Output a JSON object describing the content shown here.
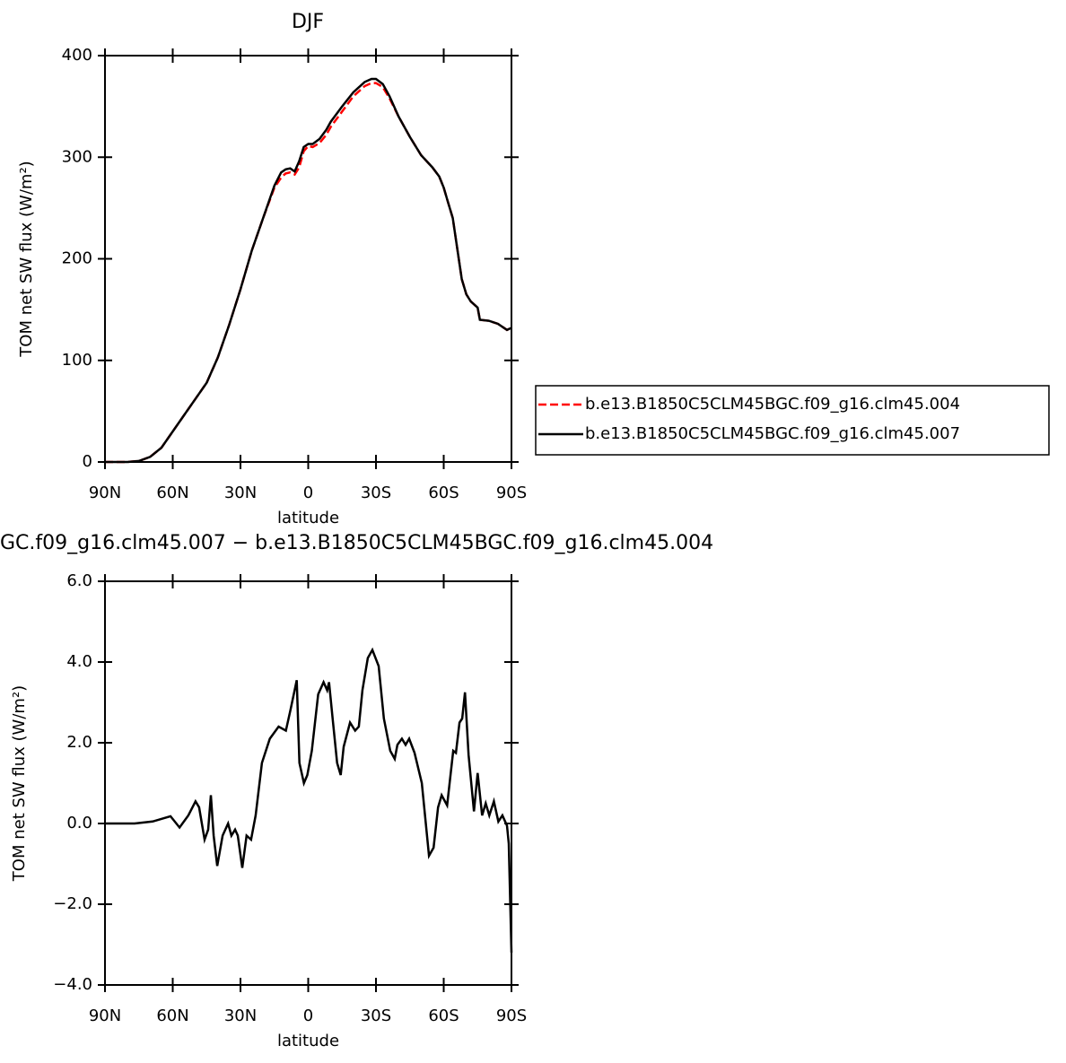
{
  "chart_data": [
    {
      "type": "line",
      "title": "DJF",
      "xlabel": "latitude",
      "ylabel": "TOM net SW flux (W/m²)",
      "xlim": [
        90,
        -90
      ],
      "xticks": [
        {
          "value": 90,
          "label": "90N"
        },
        {
          "value": 60,
          "label": "60N"
        },
        {
          "value": 30,
          "label": "30N"
        },
        0,
        {
          "value": -30,
          "label": "30S"
        },
        {
          "value": -60,
          "label": "60S"
        },
        {
          "value": -90,
          "label": "90S"
        }
      ],
      "ylim": [
        0,
        400
      ],
      "yticks": [
        0,
        100,
        200,
        300,
        400
      ],
      "legend": "right",
      "x": [
        90,
        85,
        80,
        75,
        70,
        65,
        60,
        55,
        50,
        45,
        40,
        35,
        30,
        25,
        20,
        15,
        12,
        10,
        8,
        6,
        4,
        2,
        0,
        -2,
        -5,
        -8,
        -10,
        -15,
        -20,
        -25,
        -28,
        -30,
        -33,
        -36,
        -40,
        -45,
        -50,
        -55,
        -58,
        -60,
        -62,
        -64,
        -66,
        -68,
        -70,
        -72,
        -74,
        -75,
        -76,
        -80,
        -84,
        -88,
        -90
      ],
      "series": [
        {
          "name": "b.e13.B1850C5CLM45BGC.f09_g16.clm45.004",
          "color": "#ff0000",
          "dash": true,
          "values": [
            0,
            0,
            0,
            1,
            5,
            14,
            30,
            46,
            62,
            78,
            103,
            135,
            170,
            208,
            240,
            270,
            280,
            284,
            285,
            283,
            290,
            306,
            311,
            310,
            314,
            322,
            330,
            345,
            360,
            370,
            373,
            373,
            369,
            358,
            340,
            320,
            302,
            290,
            281,
            270,
            255,
            240,
            210,
            180,
            165,
            158,
            154,
            152,
            140,
            139,
            136,
            130,
            132
          ]
        },
        {
          "name": "b.e13.B1850C5CLM45BGC.f09_g16.clm45.007",
          "color": "#000000",
          "dash": false,
          "values": [
            0,
            0,
            0,
            1,
            5,
            14,
            30,
            46,
            62,
            78,
            103,
            135,
            170,
            208,
            240,
            272,
            285,
            288,
            289,
            286,
            296,
            310,
            313,
            313,
            318,
            327,
            335,
            350,
            364,
            374,
            377,
            377,
            372,
            360,
            340,
            320,
            302,
            290,
            281,
            270,
            255,
            240,
            210,
            180,
            165,
            158,
            154,
            152,
            140,
            139,
            136,
            130,
            132
          ]
        }
      ]
    },
    {
      "type": "line",
      "title": "GC.f09_g16.clm45.007 − b.e13.B1850C5CLM45BGC.f09_g16.clm45.004",
      "xlabel": "latitude",
      "ylabel": "TOM net SW flux (W/m²)",
      "xlim": [
        90,
        -90
      ],
      "xticks": [
        {
          "value": 90,
          "label": "90N"
        },
        {
          "value": 60,
          "label": "60N"
        },
        {
          "value": 30,
          "label": "30N"
        },
        0,
        {
          "value": -30,
          "label": "30S"
        },
        {
          "value": -60,
          "label": "60S"
        },
        {
          "value": -90,
          "label": "90S"
        }
      ],
      "ylim": [
        -4,
        6
      ],
      "yticks": [
        {
          "value": -4,
          "label": "−4.0"
        },
        {
          "value": -2,
          "label": "−2.0"
        },
        {
          "value": 0,
          "label": "0.0"
        },
        {
          "value": 2,
          "label": "2.0"
        },
        {
          "value": 4,
          "label": "4.0"
        },
        {
          "value": 6,
          "label": "6.0"
        }
      ],
      "x": [
        90,
        76.9,
        68.9,
        61.0,
        57.0,
        53.1,
        49.9,
        48.3,
        45.9,
        44.3,
        43.1,
        41.9,
        40.3,
        37.9,
        35.5,
        34.0,
        32.4,
        31.2,
        29.2,
        27.3,
        25.3,
        23.3,
        20.5,
        17.0,
        13.1,
        9.9,
        7.9,
        5.1,
        3.9,
        1.9,
        0.4,
        -1.6,
        -4.4,
        -6.8,
        -8.4,
        -9.2,
        -10.8,
        -12.8,
        -14.4,
        -15.7,
        -18.5,
        -20.8,
        -22.4,
        -24.0,
        -26.4,
        -28.4,
        -31.2,
        -33.5,
        -36.3,
        -38.3,
        -39.5,
        -41.5,
        -43.1,
        -44.7,
        -47.1,
        -50.3,
        -53.5,
        -55.5,
        -57.5,
        -59.1,
        -61.5,
        -64.2,
        -65.4,
        -67.0,
        -68.2,
        -69.4,
        -71.0,
        -73.4,
        -75.0,
        -77.0,
        -78.6,
        -80.2,
        -82.2,
        -84.2,
        -86.0,
        -88.0,
        -88.8,
        -90
      ],
      "series": [
        {
          "color": "#000000",
          "dash": false,
          "values": [
            0,
            0,
            0.05,
            0.18,
            -0.1,
            0.2,
            0.55,
            0.4,
            -0.4,
            -0.15,
            0.7,
            -0.3,
            -1.05,
            -0.3,
            0,
            -0.3,
            -0.15,
            -0.3,
            -1.1,
            -0.3,
            -0.4,
            0.2,
            1.5,
            2.1,
            2.4,
            2.3,
            2.8,
            3.55,
            1.5,
            1.0,
            1.2,
            1.8,
            3.2,
            3.5,
            3.3,
            3.5,
            2.6,
            1.5,
            1.2,
            1.9,
            2.5,
            2.3,
            2.4,
            3.3,
            4.1,
            4.3,
            3.9,
            2.6,
            1.8,
            1.6,
            1.95,
            2.1,
            1.95,
            2.1,
            1.75,
            1.0,
            -0.8,
            -0.6,
            0.4,
            0.7,
            0.45,
            1.8,
            1.75,
            2.5,
            2.6,
            3.25,
            1.7,
            0.3,
            1.25,
            0.2,
            0.5,
            0.2,
            0.55,
            0.05,
            0.2,
            -0.05,
            -0.5,
            -3.2
          ]
        }
      ]
    }
  ]
}
